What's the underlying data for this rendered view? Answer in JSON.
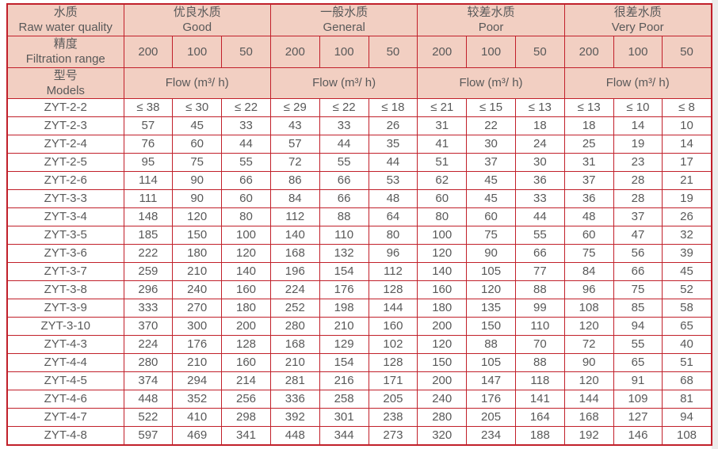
{
  "page": {
    "background": "#ffffff",
    "right_gutter_color": "#ececeb"
  },
  "colors": {
    "border_red": "#c1202a",
    "header_fill": "#f2cfc2",
    "text_gray": "#595959"
  },
  "table": {
    "corner": {
      "zh": "水质",
      "en": "Raw water quality"
    },
    "quality_groups": [
      {
        "zh": "优良水质",
        "en": "Good"
      },
      {
        "zh": "一般水质",
        "en": "General"
      },
      {
        "zh": "较差水质",
        "en": "Poor"
      },
      {
        "zh": "很差水质",
        "en": "Very Poor"
      }
    ],
    "filtration": {
      "zh": "精度",
      "en": "Filtration range",
      "values": [
        "200",
        "100",
        "50"
      ]
    },
    "models_header": {
      "zh": "型号",
      "en": "Models"
    },
    "flow_label": "Flow (m³/ h)",
    "rows": [
      {
        "model": "ZYT-2-2",
        "values": [
          "≤ 38",
          "≤ 30",
          "≤ 22",
          "≤ 29",
          "≤ 22",
          "≤ 18",
          "≤ 21",
          "≤ 15",
          "≤ 13",
          "≤ 13",
          "≤ 10",
          "≤ 8"
        ]
      },
      {
        "model": "ZYT-2-3",
        "values": [
          "57",
          "45",
          "33",
          "43",
          "33",
          "26",
          "31",
          "22",
          "18",
          "18",
          "14",
          "10"
        ]
      },
      {
        "model": "ZYT-2-4",
        "values": [
          "76",
          "60",
          "44",
          "57",
          "44",
          "35",
          "41",
          "30",
          "24",
          "25",
          "19",
          "14"
        ]
      },
      {
        "model": "ZYT-2-5",
        "values": [
          "95",
          "75",
          "55",
          "72",
          "55",
          "44",
          "51",
          "37",
          "30",
          "31",
          "23",
          "17"
        ]
      },
      {
        "model": "ZYT-2-6",
        "values": [
          "114",
          "90",
          "66",
          "86",
          "66",
          "53",
          "62",
          "45",
          "36",
          "37",
          "28",
          "21"
        ]
      },
      {
        "model": "ZYT-3-3",
        "values": [
          "111",
          "90",
          "60",
          "84",
          "66",
          "48",
          "60",
          "45",
          "33",
          "36",
          "28",
          "19"
        ]
      },
      {
        "model": "ZYT-3-4",
        "values": [
          "148",
          "120",
          "80",
          "112",
          "88",
          "64",
          "80",
          "60",
          "44",
          "48",
          "37",
          "26"
        ]
      },
      {
        "model": "ZYT-3-5",
        "values": [
          "185",
          "150",
          "100",
          "140",
          "110",
          "80",
          "100",
          "75",
          "55",
          "60",
          "47",
          "32"
        ]
      },
      {
        "model": "ZYT-3-6",
        "values": [
          "222",
          "180",
          "120",
          "168",
          "132",
          "96",
          "120",
          "90",
          "66",
          "75",
          "56",
          "39"
        ]
      },
      {
        "model": "ZYT-3-7",
        "values": [
          "259",
          "210",
          "140",
          "196",
          "154",
          "112",
          "140",
          "105",
          "77",
          "84",
          "66",
          "45"
        ]
      },
      {
        "model": "ZYT-3-8",
        "values": [
          "296",
          "240",
          "160",
          "224",
          "176",
          "128",
          "160",
          "120",
          "88",
          "96",
          "75",
          "52"
        ]
      },
      {
        "model": "ZYT-3-9",
        "values": [
          "333",
          "270",
          "180",
          "252",
          "198",
          "144",
          "180",
          "135",
          "99",
          "108",
          "85",
          "58"
        ]
      },
      {
        "model": "ZYT-3-10",
        "values": [
          "370",
          "300",
          "200",
          "280",
          "210",
          "160",
          "200",
          "150",
          "110",
          "120",
          "94",
          "65"
        ]
      },
      {
        "model": "ZYT-4-3",
        "values": [
          "224",
          "176",
          "128",
          "168",
          "129",
          "102",
          "120",
          "88",
          "70",
          "72",
          "55",
          "40"
        ]
      },
      {
        "model": "ZYT-4-4",
        "values": [
          "280",
          "210",
          "160",
          "210",
          "154",
          "128",
          "150",
          "105",
          "88",
          "90",
          "65",
          "51"
        ]
      },
      {
        "model": "ZYT-4-5",
        "values": [
          "374",
          "294",
          "214",
          "281",
          "216",
          "171",
          "200",
          "147",
          "118",
          "120",
          "91",
          "68"
        ]
      },
      {
        "model": "ZYT-4-6",
        "values": [
          "448",
          "352",
          "256",
          "336",
          "258",
          "205",
          "240",
          "176",
          "141",
          "144",
          "109",
          "81"
        ]
      },
      {
        "model": "ZYT-4-7",
        "values": [
          "522",
          "410",
          "298",
          "392",
          "301",
          "238",
          "280",
          "205",
          "164",
          "168",
          "127",
          "94"
        ]
      },
      {
        "model": "ZYT-4-8",
        "values": [
          "597",
          "469",
          "341",
          "448",
          "344",
          "273",
          "320",
          "234",
          "188",
          "192",
          "146",
          "108"
        ]
      }
    ]
  }
}
